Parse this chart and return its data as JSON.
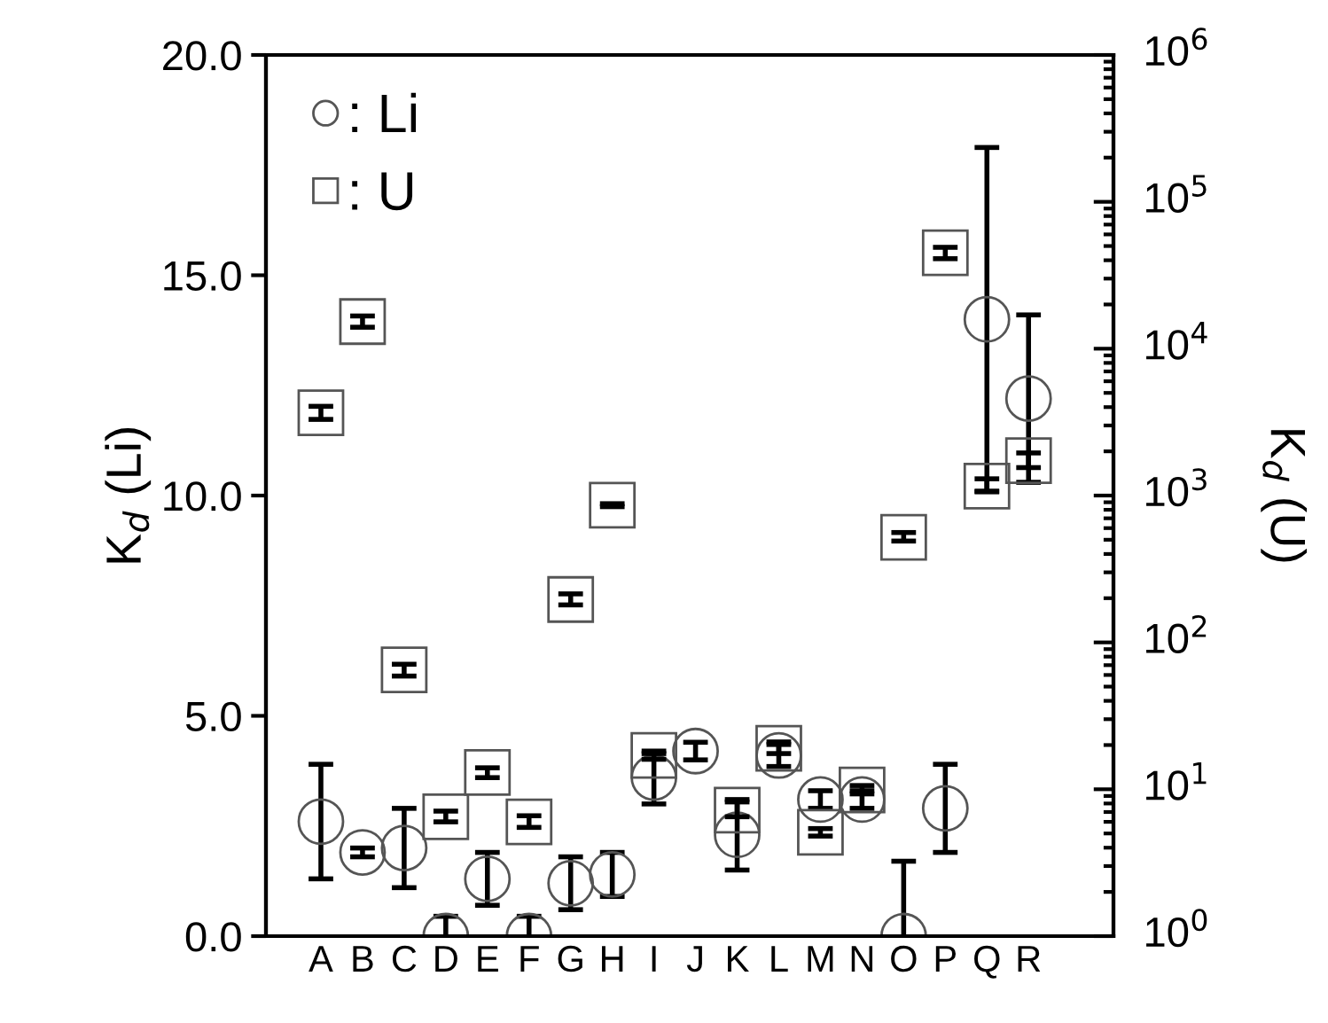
{
  "chart_data": {
    "type": "scatter",
    "categories": [
      "A",
      "B",
      "C",
      "D",
      "E",
      "F",
      "G",
      "H",
      "I",
      "J",
      "K",
      "L",
      "M",
      "N",
      "O",
      "P",
      "Q",
      "R"
    ],
    "ylabel": "K$_{d}$ (Li)",
    "y2label": "K$_{d}$ (U)",
    "ylim": [
      0,
      20
    ],
    "yticks": [
      {
        "value": 0,
        "label": "0.0"
      },
      {
        "value": 5,
        "label": "5.0"
      },
      {
        "value": 10,
        "label": "10.0"
      },
      {
        "value": 15,
        "label": "15.0"
      },
      {
        "value": 20,
        "label": "20.0"
      }
    ],
    "log": "y2",
    "y2lim": [
      1,
      1000000
    ],
    "y2ticks": [
      {
        "value": 1,
        "label": "10$^{0}$"
      },
      {
        "value": 10,
        "label": "10$^{1}$"
      },
      {
        "value": 100,
        "label": "10$^{2}$"
      },
      {
        "value": 1000,
        "label": "10$^{3}$"
      },
      {
        "value": 10000,
        "label": "10$^{4}$"
      },
      {
        "value": 100000,
        "label": "10$^{5}$"
      },
      {
        "value": 1000000,
        "label": "10$^{6}$"
      }
    ],
    "legend": "top left",
    "grid": false,
    "series": [
      {
        "name": ": Li",
        "color": "#555555",
        "marker": "circle",
        "values": [
          2.6,
          1.9,
          2.0,
          0,
          1.3,
          0,
          1.2,
          1.4,
          3.6,
          4.2,
          2.3,
          4.1,
          3.1,
          3.1,
          0,
          2.9,
          14.0,
          12.2
        ],
        "errors": [
          1.3,
          0.1,
          0.9,
          0.45,
          0.6,
          0.45,
          0.6,
          0.5,
          0.6,
          0.2,
          0.8,
          0.25,
          0.2,
          0.2,
          1.7,
          1.0,
          3.9,
          1.9
        ]
      },
      {
        "name": ": U",
        "color": "#555555",
        "marker": "square",
        "axis": "y2",
        "values": [
          3660,
          15300,
          65,
          6.5,
          13,
          6.0,
          196,
          860,
          17,
          null,
          7.2,
          19,
          5.1,
          9.9,
          520,
          45000,
          1160,
          1730
        ],
        "errors": [
          [
            3300,
            4050
          ],
          [
            14000,
            16700
          ],
          [
            59,
            71
          ],
          [
            6.0,
            7.1
          ],
          [
            12,
            14
          ],
          [
            5.5,
            6.6
          ],
          [
            180,
            214
          ],
          [
            840,
            880
          ],
          [
            16,
            17.5
          ],
          null,
          [
            6.5,
            8.2
          ],
          [
            17.5,
            21
          ],
          [
            4.8,
            5.4
          ],
          [
            9.3,
            10.6
          ],
          [
            490,
            560
          ],
          [
            41000,
            49000
          ],
          [
            1060,
            1300
          ],
          [
            1550,
            1950
          ]
        ]
      }
    ]
  }
}
